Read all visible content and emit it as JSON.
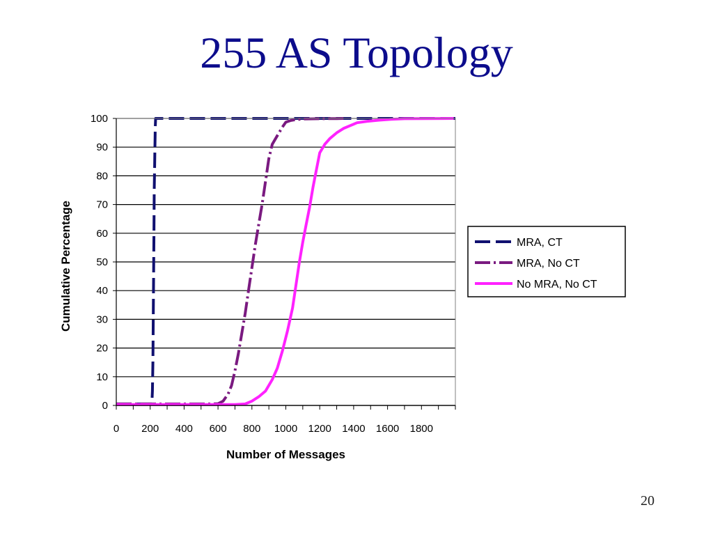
{
  "slide": {
    "title": "255 AS Topology",
    "page_number": "20"
  },
  "chart_data": {
    "type": "line",
    "xlabel": "Number of Messages",
    "ylabel": "Cumulative Percentage",
    "xlim": [
      0,
      2000
    ],
    "ylim": [
      0,
      100
    ],
    "x_ticks": [
      0,
      200,
      400,
      600,
      800,
      1000,
      1200,
      1400,
      1600,
      1800
    ],
    "y_ticks": [
      0,
      10,
      20,
      30,
      40,
      50,
      60,
      70,
      80,
      90,
      100
    ],
    "grid": "horizontal",
    "legend": "right",
    "series": [
      {
        "name": "MRA, CT",
        "color": "#101070",
        "dash": "long-dash",
        "x": [
          0,
          210,
          213,
          216,
          218,
          220,
          222,
          224,
          226,
          228,
          230,
          232,
          2000
        ],
        "y": [
          0.5,
          0.5,
          5,
          15,
          30,
          45,
          60,
          75,
          82,
          90,
          97,
          100,
          100
        ]
      },
      {
        "name": "MRA, No CT",
        "color": "#7a1a80",
        "dash": "dash-dot",
        "x": [
          0,
          560,
          600,
          630,
          660,
          680,
          700,
          720,
          740,
          760,
          780,
          800,
          820,
          840,
          860,
          880,
          900,
          920,
          950,
          980,
          1000,
          1030,
          1060,
          1100,
          1200,
          1300,
          1340
        ],
        "y": [
          0.5,
          0.5,
          0.6,
          1.5,
          4,
          7,
          12,
          18,
          25,
          32,
          40,
          48,
          56,
          63,
          70,
          78,
          86,
          91,
          94,
          97,
          98.7,
          99.3,
          99.6,
          99.8,
          99.9,
          99.95,
          100
        ]
      },
      {
        "name": "No MRA, No CT",
        "color": "#ff22ff",
        "dash": "solid",
        "x": [
          0,
          700,
          760,
          800,
          840,
          880,
          920,
          950,
          980,
          1010,
          1040,
          1060,
          1080,
          1100,
          1120,
          1140,
          1160,
          1180,
          1200,
          1230,
          1260,
          1300,
          1340,
          1380,
          1420,
          1480,
          1550,
          1620,
          1700,
          1990
        ],
        "y": [
          0.3,
          0.3,
          0.5,
          1.5,
          3,
          5,
          9,
          13,
          19,
          26,
          34,
          42,
          50,
          57,
          63,
          69,
          76,
          82,
          88,
          91,
          93,
          95,
          96.5,
          97.5,
          98.5,
          99,
          99.4,
          99.7,
          99.9,
          100
        ]
      }
    ]
  }
}
